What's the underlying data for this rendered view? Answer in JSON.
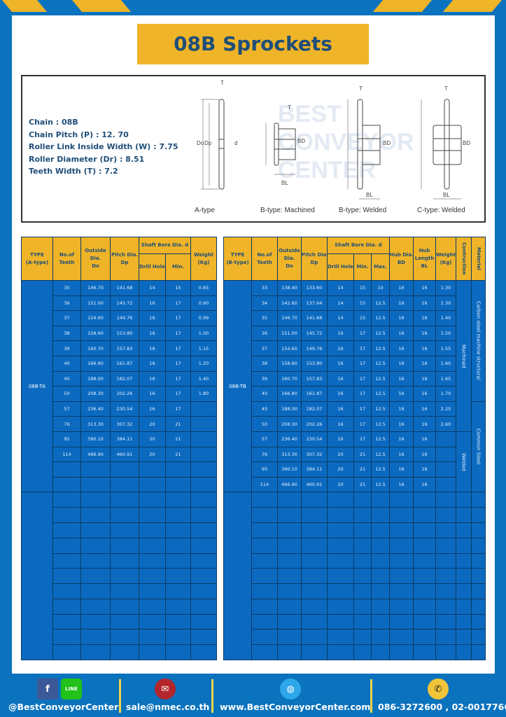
{
  "title": "08B Sprockets",
  "colors": {
    "frame": "#0b72bd",
    "accent": "#efb428",
    "cell": "#0b6ac0",
    "text": "#1f4e79"
  },
  "specs": [
    "Chain  : 08B",
    "Chain Pitch (P)  :  12. 70",
    "Roller Link Inside Width (W)  :  7.75",
    "Roller Diameter (Dr)  : 8.51",
    "Teeth Width (T)  :  7.2"
  ],
  "diagram": {
    "captions": [
      "A-type",
      "B-type: Machined",
      "B-type: Welded",
      "C-type: Welded"
    ],
    "labels": {
      "t": "T",
      "do": "Do",
      "dp": "Dp",
      "d": "d",
      "bd": "BD",
      "bl": "BL"
    },
    "watermark": [
      "BEST",
      "CONVEYOR",
      "CENTER"
    ]
  },
  "table_a": {
    "headers": {
      "type": "TYPE",
      "type_sub": "(A-type)",
      "teeth": "No.of",
      "teeth_sub": "Teeth",
      "od": "Outside",
      "od2": "Dia.",
      "od3": "Do",
      "pd": "Pitch Dia.",
      "pd2": "Dp",
      "bore": "Shaft Bore Dia. d",
      "drill": "Drill Hole",
      "min": "Min.",
      "wt": "Weight",
      "wt2": "(Kg)"
    },
    "type": "08B-TA",
    "rows": [
      [
        "35",
        "146.70",
        "141.68",
        "14",
        "15",
        "0.85"
      ],
      [
        "36",
        "151.00",
        "145.72",
        "16",
        "17",
        "0.90"
      ],
      [
        "37",
        "154.60",
        "149.76",
        "16",
        "17",
        "0.99"
      ],
      [
        "38",
        "158.60",
        "153.80",
        "16",
        "17",
        "1.00"
      ],
      [
        "39",
        "160.70",
        "157.83",
        "16",
        "17",
        "1.15"
      ],
      [
        "40",
        "166.80",
        "161.87",
        "16",
        "17",
        "1.20"
      ],
      [
        "45",
        "188.00",
        "182.07",
        "16",
        "17",
        "1.40"
      ],
      [
        "50",
        "208.30",
        "202.26",
        "16",
        "17",
        "1.80"
      ],
      [
        "57",
        "236.40",
        "230.54",
        "16",
        "17",
        ""
      ],
      [
        "76",
        "313.30",
        "307.32",
        "20",
        "21",
        ""
      ],
      [
        "95",
        "390.10",
        "384.11",
        "20",
        "21",
        ""
      ],
      [
        "114",
        "466.90",
        "460.91",
        "20",
        "21",
        ""
      ]
    ]
  },
  "table_b": {
    "headers": {
      "type": "TYPE",
      "type_sub": "(B-type)",
      "teeth": "No.of",
      "teeth_sub": "Teeth",
      "od": "Outside",
      "od2": "Dia.",
      "od3": "Do",
      "pd": "Pitch Dia.",
      "pd2": "Dp",
      "bore": "Shaft Bore Dia. d",
      "drill": "Drill Hole",
      "min": "Min.",
      "max": "Max.",
      "hub": "Hub Dia.",
      "hub2": "BD",
      "hl": "Hub",
      "hl2": "Length",
      "hl3": "BL",
      "wt": "Weight",
      "wt2": "(Kg)",
      "con": "Contruction",
      "mat": "Material"
    },
    "type": "08B-TB",
    "construction": [
      "Machined",
      "Welded"
    ],
    "material": [
      "Carbon steel  machine structural",
      "Common Steel"
    ],
    "rows": [
      [
        "33",
        "138.40",
        "133.60",
        "14",
        "15",
        "10",
        "16",
        "16",
        "1.30"
      ],
      [
        "34",
        "142.60",
        "137.64",
        "14",
        "15",
        "12.5",
        "16",
        "16",
        "1.30"
      ],
      [
        "35",
        "146.70",
        "141.68",
        "14",
        "15",
        "12.5",
        "16",
        "16",
        "1.40"
      ],
      [
        "36",
        "151.00",
        "145.72",
        "16",
        "17",
        "12.5",
        "16",
        "16",
        "1.50"
      ],
      [
        "37",
        "154.60",
        "149.76",
        "16",
        "17",
        "12.5",
        "16",
        "16",
        "1.55"
      ],
      [
        "38",
        "158.60",
        "153.80",
        "16",
        "17",
        "12.5",
        "16",
        "16",
        "1.60"
      ],
      [
        "39",
        "160.70",
        "157.83",
        "16",
        "17",
        "12.5",
        "16",
        "16",
        "1.65"
      ],
      [
        "40",
        "166.80",
        "161.87",
        "16",
        "17",
        "12.5",
        "16",
        "16",
        "1.70"
      ],
      [
        "45",
        "188.00",
        "182.07",
        "16",
        "17",
        "12.5",
        "16",
        "16",
        "2.25"
      ],
      [
        "50",
        "208.30",
        "202.26",
        "16",
        "17",
        "12.5",
        "16",
        "16",
        "2.60"
      ],
      [
        "57",
        "236.40",
        "230.54",
        "16",
        "17",
        "12.5",
        "16",
        "16",
        ""
      ],
      [
        "76",
        "313.30",
        "307.32",
        "20",
        "21",
        "12.5",
        "16",
        "16",
        ""
      ],
      [
        "95",
        "390.10",
        "384.11",
        "20",
        "21",
        "12.5",
        "16",
        "16",
        ""
      ],
      [
        "114",
        "466.90",
        "460.91",
        "20",
        "21",
        "12.5",
        "16",
        "16",
        ""
      ]
    ]
  },
  "footer": {
    "social": "@BestConveyorCenter",
    "email": "sale@nmec.co.th",
    "web": "www.BestConveyorCenter.com",
    "phone": "086-3272600 , 02-0017766",
    "line": "LINE"
  }
}
